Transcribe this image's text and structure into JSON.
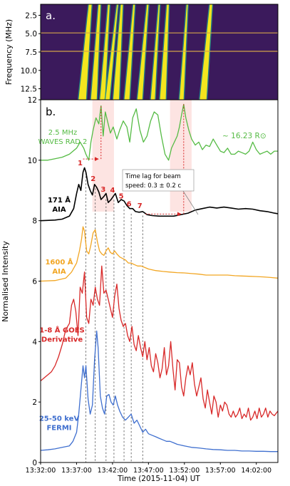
{
  "chart_data": [
    {
      "type": "heatmap",
      "panel_label": "a.",
      "ylabel": "Frequency (MHz)",
      "y_ticks": [
        "2.5",
        "5.0",
        "7.5",
        "10.0",
        "12.5"
      ],
      "y_tick_values": [
        2.5,
        5.0,
        7.5,
        10.0,
        12.5
      ],
      "ylim": [
        14.0,
        1.0
      ],
      "xlim": [
        0,
        33
      ],
      "colors": {
        "background": "#3b1a5c",
        "mid": "#21918c",
        "high": "#f4e51e",
        "line": "#d4a44a"
      },
      "horizontal_lines_mhz": [
        4.9,
        7.4
      ],
      "bursts": [
        {
          "t": 5.8,
          "drift": 11,
          "w": 1.1
        },
        {
          "t": 7.4,
          "drift": 8,
          "w": 0.9
        },
        {
          "t": 8.6,
          "drift": 9,
          "w": 0.8
        },
        {
          "t": 9.3,
          "drift": 14,
          "w": 0.7
        },
        {
          "t": 10.5,
          "drift": 8,
          "w": 0.9
        },
        {
          "t": 12.0,
          "drift": 10,
          "w": 0.8
        },
        {
          "t": 13.8,
          "drift": 11,
          "w": 0.8
        },
        {
          "t": 15.6,
          "drift": 9,
          "w": 0.7
        },
        {
          "t": 17.0,
          "drift": 7,
          "w": 0.9
        },
        {
          "t": 19.6,
          "drift": 8,
          "w": 0.7
        },
        {
          "t": 22.6,
          "drift": 11,
          "w": 1.0
        }
      ]
    },
    {
      "type": "line",
      "panel_label": "b.",
      "xlabel": "Time (2015-11-04) UT",
      "ylabel": "Normalised Intensity",
      "xlim": [
        0,
        33
      ],
      "ylim": [
        0,
        12
      ],
      "x_ticks": [
        0,
        5,
        10,
        15,
        20,
        25,
        30
      ],
      "x_tick_labels": [
        "13:32:00",
        "13:37:00",
        "13:42:00",
        "13:47:00",
        "13:52:00",
        "13:57:00",
        "14:02:00"
      ],
      "y_ticks": [
        0,
        2,
        4,
        6,
        8,
        10,
        12
      ],
      "y_tick_labels": [
        "0",
        "2",
        "4",
        "6",
        "8",
        "10",
        "12"
      ],
      "vertical_dashed_times": [
        6.3,
        7.6,
        9.1,
        10.2,
        11.6,
        12.6,
        14.2
      ],
      "peak_labels": [
        "1",
        "2",
        "3",
        "4",
        "5",
        "6",
        "7"
      ],
      "peak_positions": [
        [
          5.9,
          9.74
        ],
        [
          7.7,
          9.22
        ],
        [
          9.1,
          8.86
        ],
        [
          10.4,
          8.84
        ],
        [
          11.6,
          8.64
        ],
        [
          12.7,
          8.38
        ],
        [
          14.2,
          8.32
        ]
      ],
      "shaded_time_ranges": [
        [
          7.2,
          10.2
        ],
        [
          18.0,
          21.0
        ]
      ],
      "annotation": {
        "line1": "Time lag for beam",
        "line2": "speed: 0.3 ± 0.2 c"
      },
      "radial_label": "~ 16.23 R⊙",
      "colors": {
        "peaks": "#d82828",
        "shade": "#fde4e2",
        "grid": "#555555"
      },
      "series": [
        {
          "name": "2.5 MHz\nWAVES RAD 2",
          "color": "#55bb44",
          "x": [
            0,
            1,
            2,
            3,
            4,
            5,
            5.5,
            6,
            6.3,
            6.7,
            7,
            7.3,
            7.7,
            8.1,
            8.4,
            8.7,
            9,
            9.3,
            9.7,
            10.1,
            10.6,
            11,
            11.5,
            12,
            12.4,
            12.8,
            13.3,
            13.8,
            14.3,
            14.8,
            15.3,
            15.8,
            16.3,
            16.8,
            17.3,
            17.8,
            18.2,
            18.6,
            19,
            19.3,
            19.6,
            19.9,
            20.2,
            20.6,
            21,
            21.5,
            22,
            22.5,
            23,
            23.5,
            24,
            24.5,
            25,
            25.5,
            26,
            26.5,
            27,
            27.5,
            28,
            28.5,
            29,
            29.5,
            30,
            30.5,
            31,
            31.5,
            32,
            32.5,
            33
          ],
          "y": [
            10.0,
            10.0,
            10.05,
            10.1,
            10.2,
            10.4,
            10.6,
            10.4,
            10.2,
            10.0,
            10.6,
            11.0,
            11.4,
            11.2,
            11.8,
            10.8,
            11.6,
            11.3,
            10.9,
            11.1,
            10.7,
            11.0,
            11.3,
            11.1,
            10.6,
            11.4,
            11.7,
            11.0,
            10.6,
            10.8,
            11.3,
            11.6,
            11.5,
            10.8,
            10.2,
            10.0,
            10.4,
            10.6,
            10.8,
            11.1,
            11.5,
            11.85,
            11.4,
            11.0,
            10.7,
            10.5,
            10.6,
            10.35,
            10.5,
            10.45,
            10.7,
            10.5,
            10.3,
            10.25,
            10.4,
            10.2,
            10.2,
            10.3,
            10.25,
            10.2,
            10.3,
            10.6,
            10.35,
            10.2,
            10.25,
            10.3,
            10.2,
            10.3,
            10.3
          ]
        },
        {
          "name": "171 Å\nAIA",
          "color": "#000000",
          "x": [
            0,
            2,
            3,
            4,
            4.6,
            5,
            5.3,
            5.6,
            5.9,
            6.1,
            6.3,
            6.6,
            6.9,
            7.2,
            7.5,
            7.8,
            8.1,
            8.4,
            8.8,
            9.1,
            9.4,
            9.8,
            10.1,
            10.4,
            10.8,
            11.2,
            11.6,
            12,
            12.4,
            12.8,
            13.2,
            13.7,
            14.2,
            14.8,
            15.5,
            16.5,
            17.5,
            18.5,
            19.5,
            20.5,
            21.5,
            22.5,
            23.5,
            24.5,
            25.5,
            26.5,
            27.5,
            28.5,
            29.5,
            30.5,
            31.5,
            32.5,
            33
          ],
          "y": [
            8.0,
            8.02,
            8.05,
            8.15,
            8.4,
            8.9,
            9.2,
            9.0,
            9.6,
            9.75,
            9.6,
            9.2,
            9.0,
            8.85,
            9.2,
            9.1,
            8.95,
            8.7,
            8.8,
            8.9,
            8.6,
            8.7,
            8.8,
            8.9,
            8.6,
            8.7,
            8.65,
            8.5,
            8.4,
            8.4,
            8.3,
            8.28,
            8.3,
            8.2,
            8.17,
            8.15,
            8.15,
            8.15,
            8.2,
            8.25,
            8.35,
            8.4,
            8.45,
            8.42,
            8.45,
            8.42,
            8.38,
            8.4,
            8.38,
            8.33,
            8.3,
            8.25,
            8.23
          ]
        },
        {
          "name": "1600 Å\nAIA",
          "color": "#f2a623",
          "x": [
            0,
            2,
            3.5,
            4.3,
            5,
            5.4,
            5.7,
            5.9,
            6.1,
            6.4,
            6.7,
            7,
            7.3,
            7.6,
            7.9,
            8.2,
            8.5,
            8.8,
            9.1,
            9.4,
            9.7,
            10,
            10.3,
            10.6,
            11,
            11.4,
            11.8,
            12.2,
            12.6,
            13,
            13.5,
            14,
            14.5,
            15,
            16,
            17,
            18,
            19,
            20,
            21,
            22,
            23,
            24,
            25,
            26,
            27,
            28,
            29,
            30,
            31,
            32,
            33
          ],
          "y": [
            6.0,
            6.02,
            6.1,
            6.3,
            6.6,
            7.0,
            7.4,
            7.8,
            7.65,
            7.0,
            6.9,
            7.2,
            7.6,
            7.7,
            7.3,
            7.0,
            6.9,
            6.85,
            7.0,
            7.1,
            6.95,
            6.9,
            7.0,
            6.9,
            6.8,
            6.75,
            6.7,
            6.6,
            6.6,
            6.55,
            6.5,
            6.5,
            6.45,
            6.4,
            6.35,
            6.32,
            6.3,
            6.28,
            6.27,
            6.25,
            6.23,
            6.2,
            6.2,
            6.2,
            6.2,
            6.18,
            6.17,
            6.16,
            6.15,
            6.14,
            6.12,
            6.1
          ]
        },
        {
          "name": "1-8 Å GOES\nDerivative",
          "color": "#d82828",
          "x": [
            0,
            0.5,
            1,
            1.5,
            2,
            2.5,
            3,
            3.5,
            4,
            4.3,
            4.6,
            4.9,
            5.2,
            5.5,
            5.8,
            6.1,
            6.4,
            6.7,
            7,
            7.3,
            7.6,
            7.9,
            8.2,
            8.5,
            8.8,
            9.1,
            9.4,
            9.7,
            10,
            10.3,
            10.6,
            10.9,
            11.2,
            11.5,
            11.8,
            12.1,
            12.4,
            12.7,
            13,
            13.3,
            13.6,
            13.9,
            14.2,
            14.5,
            14.8,
            15.1,
            15.4,
            15.7,
            16,
            16.3,
            16.6,
            16.9,
            17.2,
            17.5,
            17.8,
            18.1,
            18.4,
            18.7,
            19,
            19.3,
            19.6,
            19.9,
            20.2,
            20.5,
            20.8,
            21.1,
            21.4,
            21.7,
            22,
            22.3,
            22.6,
            22.9,
            23.2,
            23.5,
            23.8,
            24.1,
            24.4,
            24.7,
            25,
            25.3,
            25.6,
            25.9,
            26.2,
            26.5,
            26.8,
            27.1,
            27.4,
            27.7,
            28,
            28.3,
            28.6,
            28.9,
            29.2,
            29.5,
            29.8,
            30.1,
            30.4,
            30.7,
            31,
            31.3,
            31.6,
            31.9,
            32.2,
            32.5,
            33
          ],
          "y": [
            2.7,
            2.8,
            2.9,
            3.0,
            3.2,
            3.5,
            3.9,
            4.4,
            4.6,
            5.2,
            5.4,
            5.0,
            4.2,
            5.8,
            5.6,
            6.3,
            4.8,
            4.6,
            5.4,
            5.2,
            5.8,
            5.4,
            5.2,
            6.5,
            5.6,
            5.7,
            5.4,
            5.1,
            4.8,
            5.5,
            5.9,
            5.1,
            4.7,
            4.5,
            4.6,
            4.2,
            4.0,
            4.5,
            3.9,
            3.7,
            4.2,
            3.8,
            3.5,
            4.0,
            3.4,
            3.8,
            3.2,
            3.0,
            3.6,
            3.3,
            2.8,
            3.1,
            3.8,
            2.9,
            3.2,
            4.0,
            3.1,
            2.4,
            3.4,
            3.3,
            2.5,
            2.2,
            2.8,
            3.2,
            2.9,
            3.3,
            2.6,
            2.2,
            2.5,
            2.8,
            2.1,
            1.8,
            2.4,
            2.0,
            1.6,
            2.2,
            2.0,
            1.5,
            1.9,
            1.7,
            2.0,
            1.9,
            1.6,
            1.5,
            1.7,
            1.5,
            1.6,
            1.8,
            1.45,
            1.6,
            1.5,
            1.8,
            1.4,
            1.5,
            1.7,
            1.45,
            1.8,
            1.5,
            1.6,
            1.8,
            1.5,
            1.7,
            1.6,
            1.55,
            1.7
          ]
        },
        {
          "name": "25-50 keV\nFERMI",
          "color": "#3f6fcf",
          "x": [
            0,
            1,
            2,
            3,
            4,
            4.5,
            5,
            5.3,
            5.6,
            5.9,
            6.1,
            6.3,
            6.6,
            6.9,
            7.2,
            7.5,
            7.8,
            8,
            8.3,
            8.6,
            8.9,
            9.2,
            9.5,
            9.8,
            10.1,
            10.4,
            10.7,
            11,
            11.4,
            11.8,
            12.2,
            12.6,
            13,
            13.4,
            13.8,
            14.2,
            14.6,
            15,
            15.5,
            16,
            16.5,
            17,
            17.5,
            18,
            18.5,
            19,
            20,
            21,
            22,
            23,
            24,
            25,
            26,
            27,
            28,
            29,
            30,
            31,
            32,
            33
          ],
          "y": [
            0.4,
            0.42,
            0.45,
            0.5,
            0.55,
            0.7,
            1.0,
            1.6,
            2.4,
            3.2,
            2.8,
            3.2,
            2.1,
            1.6,
            1.9,
            3.4,
            4.35,
            3.8,
            2.2,
            1.8,
            1.6,
            2.2,
            2.25,
            2.0,
            1.9,
            2.2,
            1.9,
            1.7,
            1.5,
            1.4,
            1.5,
            1.6,
            1.3,
            1.4,
            1.2,
            1.0,
            1.1,
            0.95,
            0.9,
            0.85,
            0.8,
            0.75,
            0.7,
            0.7,
            0.65,
            0.6,
            0.55,
            0.5,
            0.48,
            0.45,
            0.43,
            0.42,
            0.4,
            0.4,
            0.38,
            0.38,
            0.37,
            0.37,
            0.36,
            0.36
          ]
        }
      ]
    }
  ]
}
